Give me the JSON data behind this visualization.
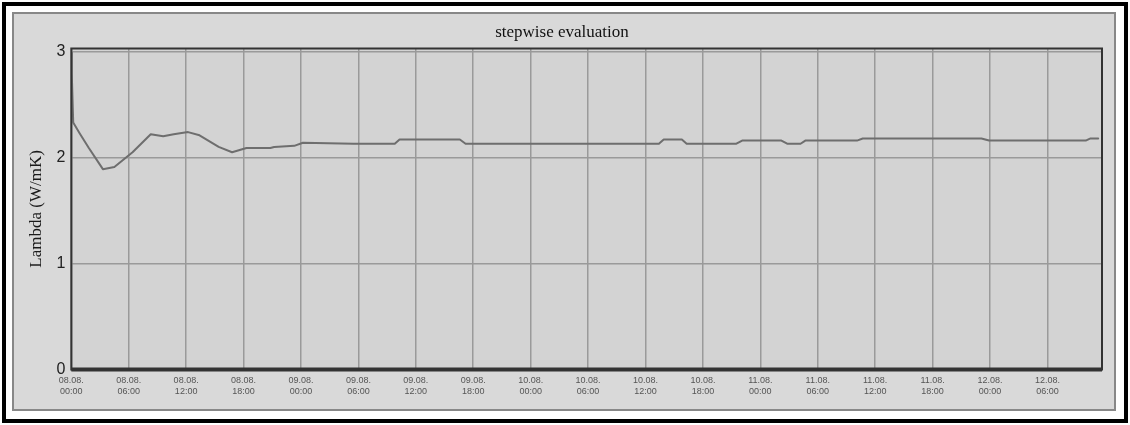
{
  "chart_data": {
    "type": "line",
    "title": "stepwise evaluation",
    "ylabel": "Lambda (W/mK)",
    "x": [
      "--08-08T00:00",
      "--08-08T00:03",
      "--08-08T00:12",
      "--08-08T00:52",
      "--08-08T01:50",
      "--08-08T03:18",
      "--08-08T04:30",
      "--08-08T06:24",
      "--08-08T08:18",
      "--08-08T09:36",
      "--08-08T10:42",
      "--08-08T12:12",
      "--08-08T13:24",
      "--08-08T15:24",
      "--08-08T16:48",
      "--08-08T18:18",
      "--08-08T20:48",
      "--08-08T21:12",
      "--08-08T23:18",
      "--08-09T00:12",
      "--08-09T05:30",
      "--08-09T09:48",
      "--08-09T10:18",
      "--08-09T16:36",
      "--08-09T17:12",
      "--08-10T13:24",
      "--08-10T13:54",
      "--08-10T15:48",
      "--08-10T16:18",
      "--08-10T21:30",
      "--08-10T22:06",
      "--08-11T02:12",
      "--08-11T02:48",
      "--08-11T04:12",
      "--08-11T04:42",
      "--08-11T10:06",
      "--08-11T10:42",
      "--08-11T23:06",
      "--08-11T23:54",
      "--08-12T10:00",
      "--08-12T10:30",
      "--08-12T11:18"
    ],
    "series": [
      {
        "color": "#6e6e6e",
        "values": [
          2.99,
          2.79,
          2.33,
          2.23,
          2.09,
          1.89,
          1.91,
          2.05,
          2.22,
          2.2,
          2.22,
          2.24,
          2.21,
          2.1,
          2.05,
          2.09,
          2.09,
          2.1,
          2.11,
          2.14,
          2.13,
          2.13,
          2.17,
          2.17,
          2.13,
          2.13,
          2.17,
          2.17,
          2.13,
          2.13,
          2.16,
          2.16,
          2.13,
          2.13,
          2.16,
          2.16,
          2.18,
          2.18,
          2.16,
          2.16,
          2.18,
          2.18
        ]
      }
    ],
    "xlim": [
      "--08-08T00:00",
      "--08-12T11:42"
    ],
    "xticks": [
      {
        "value": "--08-08T00:00",
        "label": "08.08. 00:00"
      },
      {
        "value": "--08-08T06:00",
        "label": "08.08. 06:00"
      },
      {
        "value": "--08-08T12:00",
        "label": "08.08. 12:00"
      },
      {
        "value": "--08-08T18:00",
        "label": "08.08. 18:00"
      },
      {
        "value": "--08-09T00:00",
        "label": "09.08. 00:00"
      },
      {
        "value": "--08-09T06:00",
        "label": "09.08. 06:00"
      },
      {
        "value": "--08-09T12:00",
        "label": "09.08. 12:00"
      },
      {
        "value": "--08-09T18:00",
        "label": "09.08. 18:00"
      },
      {
        "value": "--08-10T00:00",
        "label": "10.08. 00:00"
      },
      {
        "value": "--08-10T06:00",
        "label": "10.08. 06:00"
      },
      {
        "value": "--08-10T12:00",
        "label": "10.08. 12:00"
      },
      {
        "value": "--08-10T18:00",
        "label": "10.08. 18:00"
      },
      {
        "value": "--08-11T00:00",
        "label": "11.08. 00:00"
      },
      {
        "value": "--08-11T06:00",
        "label": "11.08. 06:00"
      },
      {
        "value": "--08-11T12:00",
        "label": "11.08. 12:00"
      },
      {
        "value": "--08-11T18:00",
        "label": "11.08. 18:00"
      },
      {
        "value": "--08-12T00:00",
        "label": "12.08. 00:00"
      },
      {
        "value": "--08-12T06:00",
        "label": "12.08. 06:00"
      }
    ],
    "ylim": [
      0,
      3.03
    ],
    "yticks": [
      0,
      1,
      2,
      3
    ],
    "grid": true,
    "legend": false,
    "marker": "none",
    "line_style": "solid"
  }
}
